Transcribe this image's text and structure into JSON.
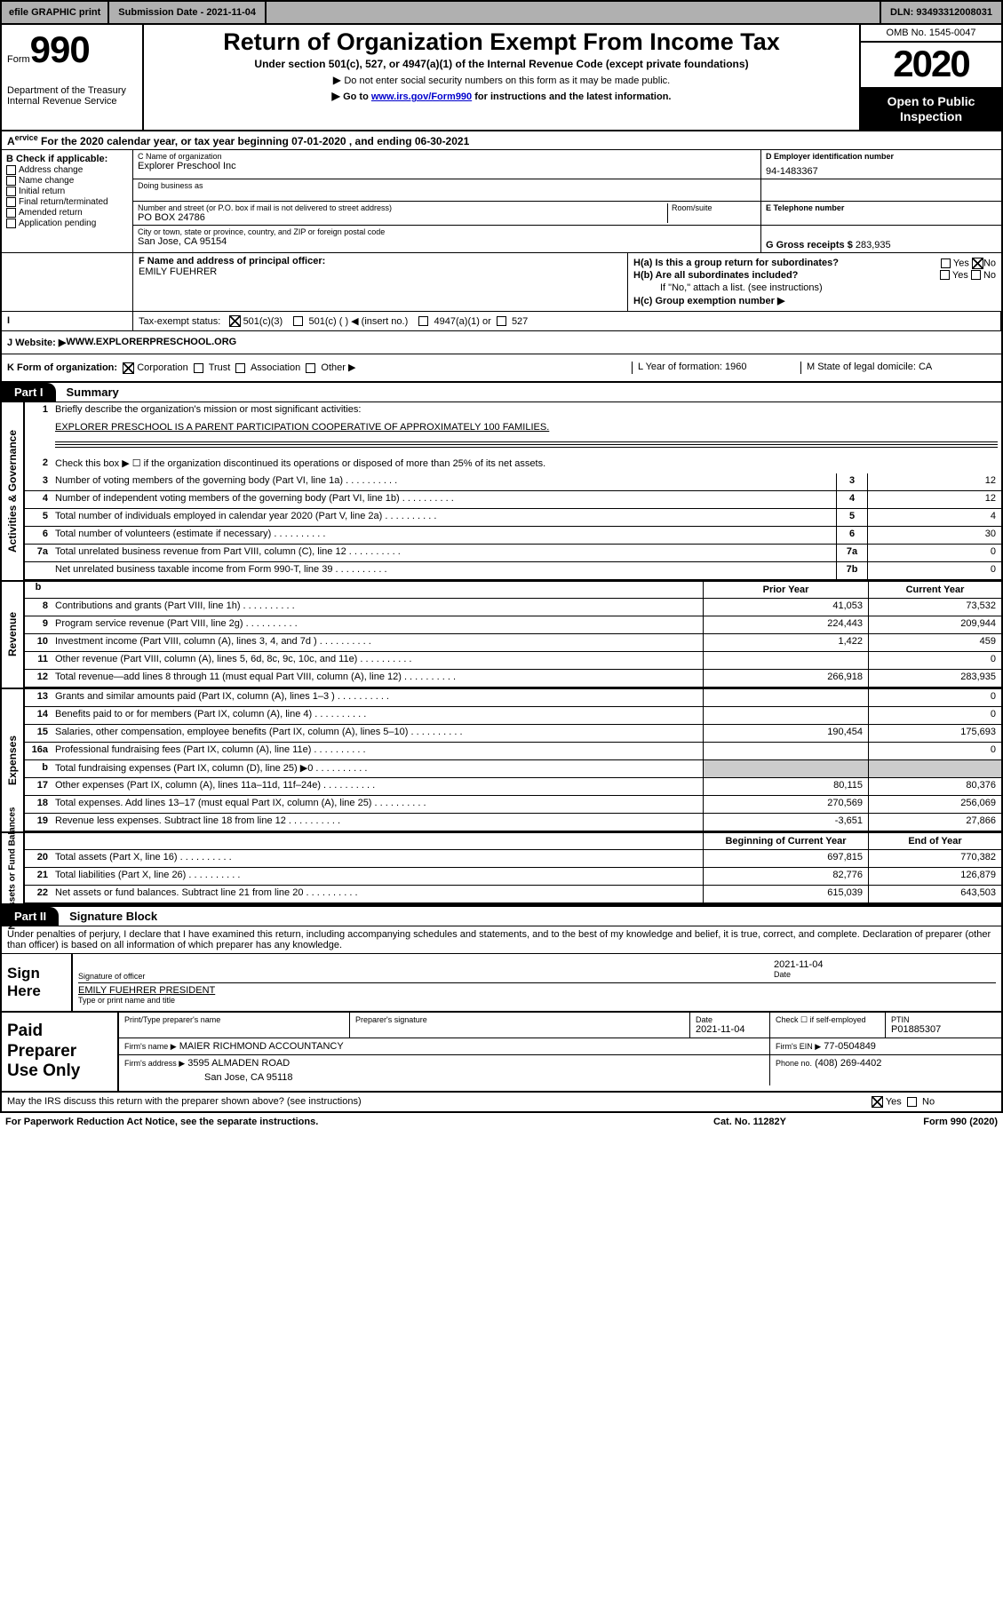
{
  "topbar": {
    "efile": "efile GRAPHIC print",
    "submission": "Submission Date - 2021-11-04",
    "dln": "DLN: 93493312008031"
  },
  "header": {
    "form_word": "Form",
    "form_num": "990",
    "dept": "Department of the Treasury\nInternal Revenue Service",
    "title": "Return of Organization Exempt From Income Tax",
    "sub": "Under section 501(c), 527, or 4947(a)(1) of the Internal Revenue Code (except private foundations)",
    "note1": "Do not enter social security numbers on this form as it may be made public.",
    "note2_pre": "Go to ",
    "note2_link": "www.irs.gov/Form990",
    "note2_post": " for instructions and the latest information.",
    "omb": "OMB No. 1545-0047",
    "year": "2020",
    "inspection": "Open to Public Inspection"
  },
  "sectA": "For the 2020 calendar year, or tax year beginning 07-01-2020    , and ending 06-30-2021",
  "entity": {
    "B_label": "B Check if applicable:",
    "B_items": [
      "Address change",
      "Name change",
      "Initial return",
      "Final return/terminated",
      "Amended return",
      "Application pending"
    ],
    "C_label": "C Name of organization",
    "C_name": "Explorer Preschool Inc",
    "dba_label": "Doing business as",
    "addr_label": "Number and street (or P.O. box if mail is not delivered to street address)",
    "addr": "PO BOX 24786",
    "room_label": "Room/suite",
    "city_label": "City or town, state or province, country, and ZIP or foreign postal code",
    "city": "San Jose, CA  95154",
    "D_label": "D Employer identification number",
    "D_val": "94-1483367",
    "E_label": "E Telephone number",
    "G_label": "G Gross receipts $ ",
    "G_val": "283,935",
    "F_label": "F  Name and address of principal officer:",
    "F_name": "EMILY FUEHRER",
    "Ha_label": "H(a)  Is this a group return for subordinates?",
    "Hb_label": "H(b)  Are all subordinates included?",
    "Hb_note": "If \"No,\" attach a list. (see instructions)",
    "Hc_label": "H(c)  Group exemption number ▶",
    "yes": "Yes",
    "no": "No"
  },
  "rowI": {
    "label": "Tax-exempt status:",
    "opt1": "501(c)(3)",
    "opt2": "501(c) (  ) ◀ (insert no.)",
    "opt3": "4947(a)(1) or",
    "opt4": "527"
  },
  "rowJ": {
    "label": "J    Website: ▶",
    "val": "  WWW.EXPLORERPRESCHOOL.ORG"
  },
  "rowK": {
    "label": "K Form of organization:",
    "opts": [
      "Corporation",
      "Trust",
      "Association",
      "Other ▶"
    ],
    "L": "L Year of formation: 1960",
    "M": "M State of legal domicile: CA"
  },
  "part1": {
    "tab": "Part I",
    "title": "Summary"
  },
  "gov": {
    "label": "Activities & Governance",
    "l1": "Briefly describe the organization's mission or most significant activities:",
    "l1v": "EXPLORER PRESCHOOL IS A PARENT PARTICIPATION COOPERATIVE OF APPROXIMATELY 100 FAMILIES.",
    "l2": "Check this box ▶ ☐  if the organization discontinued its operations or disposed of more than 25% of its net assets.",
    "rows": [
      {
        "n": "3",
        "t": "Number of voting members of the governing body (Part VI, line 1a)",
        "b": "3",
        "v": "12"
      },
      {
        "n": "4",
        "t": "Number of independent voting members of the governing body (Part VI, line 1b)",
        "b": "4",
        "v": "12"
      },
      {
        "n": "5",
        "t": "Total number of individuals employed in calendar year 2020 (Part V, line 2a)",
        "b": "5",
        "v": "4"
      },
      {
        "n": "6",
        "t": "Total number of volunteers (estimate if necessary)",
        "b": "6",
        "v": "30"
      },
      {
        "n": "7a",
        "t": "Total unrelated business revenue from Part VIII, column (C), line 12",
        "b": "7a",
        "v": "0"
      },
      {
        "n": "",
        "t": "Net unrelated business taxable income from Form 990-T, line 39",
        "b": "7b",
        "v": "0"
      }
    ],
    "hdr_b": "b",
    "hdr_prior": "Prior Year",
    "hdr_curr": "Current Year"
  },
  "rev": {
    "label": "Revenue",
    "rows": [
      {
        "n": "8",
        "t": "Contributions and grants (Part VIII, line 1h)",
        "p": "41,053",
        "c": "73,532"
      },
      {
        "n": "9",
        "t": "Program service revenue (Part VIII, line 2g)",
        "p": "224,443",
        "c": "209,944"
      },
      {
        "n": "10",
        "t": "Investment income (Part VIII, column (A), lines 3, 4, and 7d )",
        "p": "1,422",
        "c": "459"
      },
      {
        "n": "11",
        "t": "Other revenue (Part VIII, column (A), lines 5, 6d, 8c, 9c, 10c, and 11e)",
        "p": "",
        "c": "0"
      },
      {
        "n": "12",
        "t": "Total revenue—add lines 8 through 11 (must equal Part VIII, column (A), line 12)",
        "p": "266,918",
        "c": "283,935"
      }
    ]
  },
  "exp": {
    "label": "Expenses",
    "rows": [
      {
        "n": "13",
        "t": "Grants and similar amounts paid (Part IX, column (A), lines 1–3 )",
        "p": "",
        "c": "0"
      },
      {
        "n": "14",
        "t": "Benefits paid to or for members (Part IX, column (A), line 4)",
        "p": "",
        "c": "0"
      },
      {
        "n": "15",
        "t": "Salaries, other compensation, employee benefits (Part IX, column (A), lines 5–10)",
        "p": "190,454",
        "c": "175,693"
      },
      {
        "n": "16a",
        "t": "Professional fundraising fees (Part IX, column (A), line 11e)",
        "p": "",
        "c": "0"
      },
      {
        "n": "b",
        "t": "Total fundraising expenses (Part IX, column (D), line 25) ▶0",
        "p": "grey",
        "c": "grey"
      },
      {
        "n": "17",
        "t": "Other expenses (Part IX, column (A), lines 11a–11d, 11f–24e)",
        "p": "80,115",
        "c": "80,376"
      },
      {
        "n": "18",
        "t": "Total expenses. Add lines 13–17 (must equal Part IX, column (A), line 25)",
        "p": "270,569",
        "c": "256,069"
      },
      {
        "n": "19",
        "t": "Revenue less expenses. Subtract line 18 from line 12",
        "p": "-3,651",
        "c": "27,866"
      }
    ]
  },
  "na": {
    "label": "Net Assets or Fund Balances",
    "hdr_b": "Beginning of Current Year",
    "hdr_e": "End of Year",
    "rows": [
      {
        "n": "20",
        "t": "Total assets (Part X, line 16)",
        "p": "697,815",
        "c": "770,382"
      },
      {
        "n": "21",
        "t": "Total liabilities (Part X, line 26)",
        "p": "82,776",
        "c": "126,879"
      },
      {
        "n": "22",
        "t": "Net assets or fund balances. Subtract line 21 from line 20",
        "p": "615,039",
        "c": "643,503"
      }
    ]
  },
  "part2": {
    "tab": "Part II",
    "title": "Signature Block"
  },
  "sig": {
    "penalty": "Under penalties of perjury, I declare that I have examined this return, including accompanying schedules and statements, and to the best of my knowledge and belief, it is true, correct, and complete. Declaration of preparer (other than officer) is based on all information of which preparer has any knowledge.",
    "sign_here": "Sign Here",
    "sig_officer": "Signature of officer",
    "date": "Date",
    "date_v": "2021-11-04",
    "name_title": "EMILY FUEHRER  PRESIDENT",
    "type_name": "Type or print name and title",
    "paid_label": "Paid Preparer Use Only",
    "p_name_l": "Print/Type preparer's name",
    "p_sig_l": "Preparer's signature",
    "p_date_l": "Date",
    "p_date_v": "2021-11-04",
    "p_check_l": "Check ☐ if self-employed",
    "ptin_l": "PTIN",
    "ptin_v": "P01885307",
    "firm_name_l": "Firm's name    ▶",
    "firm_name_v": "MAIER RICHMOND ACCOUNTANCY",
    "firm_ein_l": "Firm's EIN ▶",
    "firm_ein_v": "77-0504849",
    "firm_addr_l": "Firm's address ▶",
    "firm_addr_v": "3595 ALMADEN ROAD",
    "firm_city": "San Jose, CA  95118",
    "phone_l": "Phone no.",
    "phone_v": "(408) 269-4402",
    "may_irs": "May the IRS discuss this return with the preparer shown above? (see instructions)"
  },
  "footer": {
    "l": "For Paperwork Reduction Act Notice, see the separate instructions.",
    "c": "Cat. No. 11282Y",
    "r": "Form 990 (2020)"
  }
}
